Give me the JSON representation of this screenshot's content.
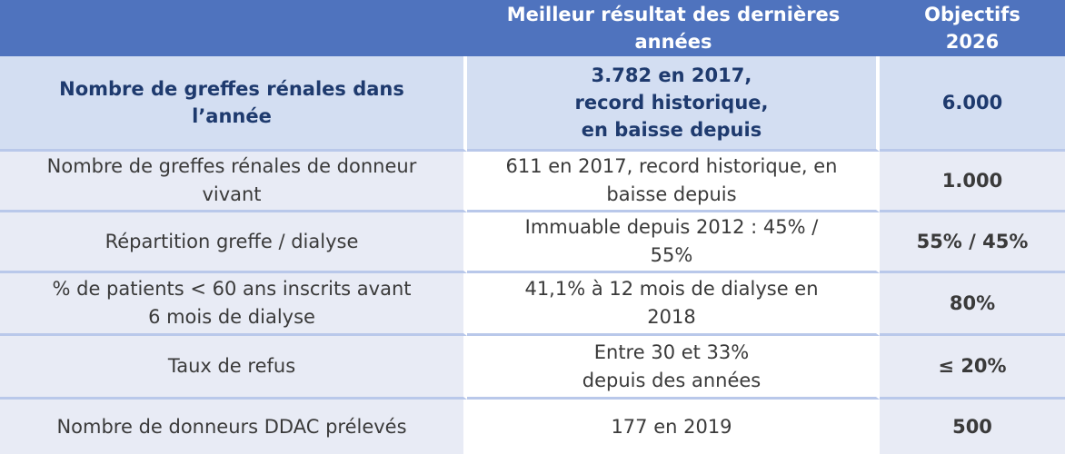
{
  "header": {
    "col1": "",
    "col2": "Meilleur résultat des dernières\nannées",
    "col3": "Objectifs\n2026"
  },
  "rows": [
    {
      "label": "Nombre de greffes rénales dans\nl’année",
      "result": "3.782 en 2017,\nrecord historique,\nen baisse depuis",
      "target": "6.000"
    },
    {
      "label": "Nombre de greffes rénales de donneur\nvivant",
      "result": "611 en 2017, record historique, en\nbaisse depuis",
      "target": "1.000"
    },
    {
      "label": "Répartition greffe / dialyse",
      "result": "Immuable depuis 2012 : 45% /\n55%",
      "target": "55% / 45%"
    },
    {
      "label": "% de patients < 60 ans inscrits avant\n6 mois de dialyse",
      "result": "41,1% à 12 mois de dialyse en\n2018",
      "target": "80%"
    },
    {
      "label": "Taux de refus",
      "result": "Entre 30 et 33%\ndepuis des années",
      "target": "≤ 20%"
    },
    {
      "label": "Nombre de donneurs DDAC prélevés",
      "result": "177 en 2019",
      "target": "500"
    }
  ]
}
